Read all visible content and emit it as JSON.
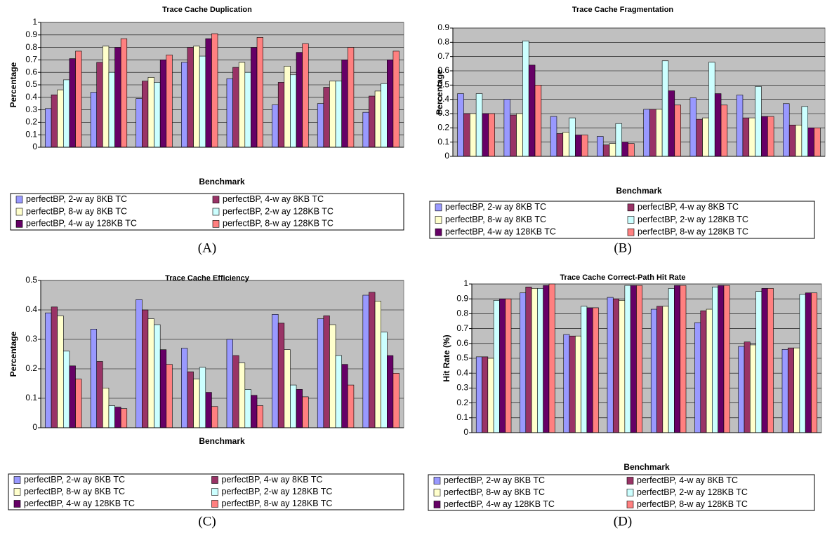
{
  "chart_data": [
    {
      "type": "bar",
      "title": "Trace Cache Duplication",
      "x_label": "Benchmark",
      "y_label": "Percentage",
      "label": "(A)",
      "categories": [
        null,
        null,
        null,
        null,
        null,
        null,
        null,
        null
      ],
      "ylim": [
        0,
        1
      ],
      "yticks": [
        0,
        0.1,
        0.2,
        0.3,
        0.4,
        0.5,
        0.6,
        0.7,
        0.8,
        0.9,
        1
      ],
      "grid": true,
      "series": [
        {
          "name": "perfectBP, 2-w ay 8KB TC",
          "color": "#9999ff",
          "values": [
            0.31,
            0.44,
            0.39,
            0.68,
            0.55,
            0.34,
            0.35,
            0.28
          ]
        },
        {
          "name": "perfectBP, 4-w ay 8KB TC",
          "color": "#993366",
          "values": [
            0.42,
            0.68,
            0.53,
            0.8,
            0.64,
            0.52,
            0.48,
            0.41
          ]
        },
        {
          "name": "perfectBP, 8-w ay 8KB TC",
          "color": "#ffffcc",
          "values": [
            0.46,
            0.81,
            0.56,
            0.81,
            0.68,
            0.65,
            0.53,
            0.45
          ]
        },
        {
          "name": "perfectBP, 2-w ay 128KB TC",
          "color": "#ccffff",
          "values": [
            0.54,
            0.6,
            0.52,
            0.73,
            0.6,
            0.58,
            0.53,
            0.51
          ]
        },
        {
          "name": "perfectBP, 4-w ay 128KB TC",
          "color": "#660066",
          "values": [
            0.71,
            0.8,
            0.7,
            0.87,
            0.8,
            0.76,
            0.7,
            0.7
          ]
        },
        {
          "name": "perfectBP, 8-w ay 128KB TC",
          "color": "#ff8080",
          "values": [
            0.77,
            0.87,
            0.74,
            0.91,
            0.88,
            0.83,
            0.8,
            0.77
          ]
        }
      ]
    },
    {
      "type": "bar",
      "title": "Trace Cache Fragmentation",
      "x_label": "Benchmark",
      "y_label": "Percentage",
      "label": "(B)",
      "categories": [
        null,
        null,
        null,
        null,
        null,
        null,
        null,
        null
      ],
      "ylim": [
        0,
        0.9
      ],
      "yticks": [
        0,
        0.1,
        0.2,
        0.3,
        0.4,
        0.5,
        0.6,
        0.7,
        0.8,
        0.9
      ],
      "grid": true,
      "series": [
        {
          "name": "perfectBP, 2-w ay 8KB TC",
          "color": "#9999ff",
          "values": [
            0.44,
            0.4,
            0.28,
            0.14,
            0.33,
            0.41,
            0.43,
            0.37
          ]
        },
        {
          "name": "perfectBP, 4-w ay 8KB TC",
          "color": "#993366",
          "values": [
            0.3,
            0.29,
            0.16,
            0.08,
            0.33,
            0.26,
            0.27,
            0.22
          ]
        },
        {
          "name": "perfectBP, 8-w ay 8KB TC",
          "color": "#ffffcc",
          "values": [
            0.3,
            0.3,
            0.17,
            0.09,
            0.33,
            0.27,
            0.27,
            0.22
          ]
        },
        {
          "name": "perfectBP, 2-w ay 128KB TC",
          "color": "#ccffff",
          "values": [
            0.44,
            0.81,
            0.27,
            0.23,
            0.67,
            0.66,
            0.49,
            0.35
          ]
        },
        {
          "name": "perfectBP, 4-w ay 128KB TC",
          "color": "#660066",
          "values": [
            0.3,
            0.64,
            0.15,
            0.1,
            0.46,
            0.44,
            0.28,
            0.2
          ]
        },
        {
          "name": "perfectBP, 8-w ay 128KB TC",
          "color": "#ff8080",
          "values": [
            0.3,
            0.5,
            0.15,
            0.09,
            0.36,
            0.36,
            0.28,
            0.2
          ]
        }
      ]
    },
    {
      "type": "bar",
      "title": "Trace Cache Efficiency",
      "x_label": "Benchmark",
      "y_label": "Percentage",
      "label": "(C)",
      "categories": [
        null,
        null,
        null,
        null,
        null,
        null,
        null,
        null
      ],
      "ylim": [
        0,
        0.5
      ],
      "yticks": [
        0,
        0.1,
        0.2,
        0.3,
        0.4,
        0.5
      ],
      "grid": true,
      "series": [
        {
          "name": "perfectBP, 2-w ay 8KB TC",
          "color": "#9999ff",
          "values": [
            0.39,
            0.335,
            0.435,
            0.27,
            0.3,
            0.385,
            0.37,
            0.45
          ]
        },
        {
          "name": "perfectBP, 4-w ay 8KB TC",
          "color": "#993366",
          "values": [
            0.41,
            0.225,
            0.4,
            0.19,
            0.245,
            0.355,
            0.38,
            0.46
          ]
        },
        {
          "name": "perfectBP, 8-w ay 8KB TC",
          "color": "#ffffcc",
          "values": [
            0.38,
            0.135,
            0.37,
            0.165,
            0.22,
            0.265,
            0.35,
            0.43
          ]
        },
        {
          "name": "perfectBP, 2-w ay 128KB TC",
          "color": "#ccffff",
          "values": [
            0.26,
            0.075,
            0.35,
            0.205,
            0.13,
            0.145,
            0.245,
            0.325
          ]
        },
        {
          "name": "perfectBP, 4-w ay 128KB TC",
          "color": "#660066",
          "values": [
            0.21,
            0.07,
            0.265,
            0.12,
            0.11,
            0.13,
            0.215,
            0.245
          ]
        },
        {
          "name": "perfectBP, 8-w ay 128KB TC",
          "color": "#ff8080",
          "values": [
            0.165,
            0.065,
            0.215,
            0.072,
            0.075,
            0.105,
            0.145,
            0.185
          ]
        }
      ]
    },
    {
      "type": "bar",
      "title": "Trace Cache Correct-Path Hit Rate",
      "x_label": "Benchmark",
      "y_label": "Hit Rate (%)",
      "label": "(D)",
      "categories": [
        null,
        null,
        null,
        null,
        null,
        null,
        null,
        null
      ],
      "ylim": [
        0,
        1
      ],
      "yticks": [
        0,
        0.1,
        0.2,
        0.3,
        0.4,
        0.5,
        0.6,
        0.7,
        0.8,
        0.9,
        1
      ],
      "grid": true,
      "series": [
        {
          "name": "perfectBP, 2-w ay 8KB TC",
          "color": "#9999ff",
          "values": [
            0.51,
            0.94,
            0.66,
            0.91,
            0.83,
            0.74,
            0.58,
            0.56
          ]
        },
        {
          "name": "perfectBP, 4-w ay 8KB TC",
          "color": "#993366",
          "values": [
            0.51,
            0.98,
            0.65,
            0.9,
            0.85,
            0.82,
            0.61,
            0.57
          ]
        },
        {
          "name": "perfectBP, 8-w ay 8KB TC",
          "color": "#ffffcc",
          "values": [
            0.5,
            0.97,
            0.65,
            0.89,
            0.85,
            0.83,
            0.59,
            0.57
          ]
        },
        {
          "name": "perfectBP, 2-w ay 128KB TC",
          "color": "#ccffff",
          "values": [
            0.89,
            0.97,
            0.85,
            0.99,
            0.97,
            0.98,
            0.95,
            0.93
          ]
        },
        {
          "name": "perfectBP, 4-w ay 128KB TC",
          "color": "#660066",
          "values": [
            0.9,
            0.99,
            0.84,
            0.99,
            0.99,
            0.99,
            0.97,
            0.94
          ]
        },
        {
          "name": "perfectBP, 8-w ay 128KB TC",
          "color": "#ff8080",
          "values": [
            0.9,
            1,
            0.84,
            0.99,
            0.99,
            0.99,
            0.97,
            0.94
          ]
        }
      ]
    }
  ]
}
